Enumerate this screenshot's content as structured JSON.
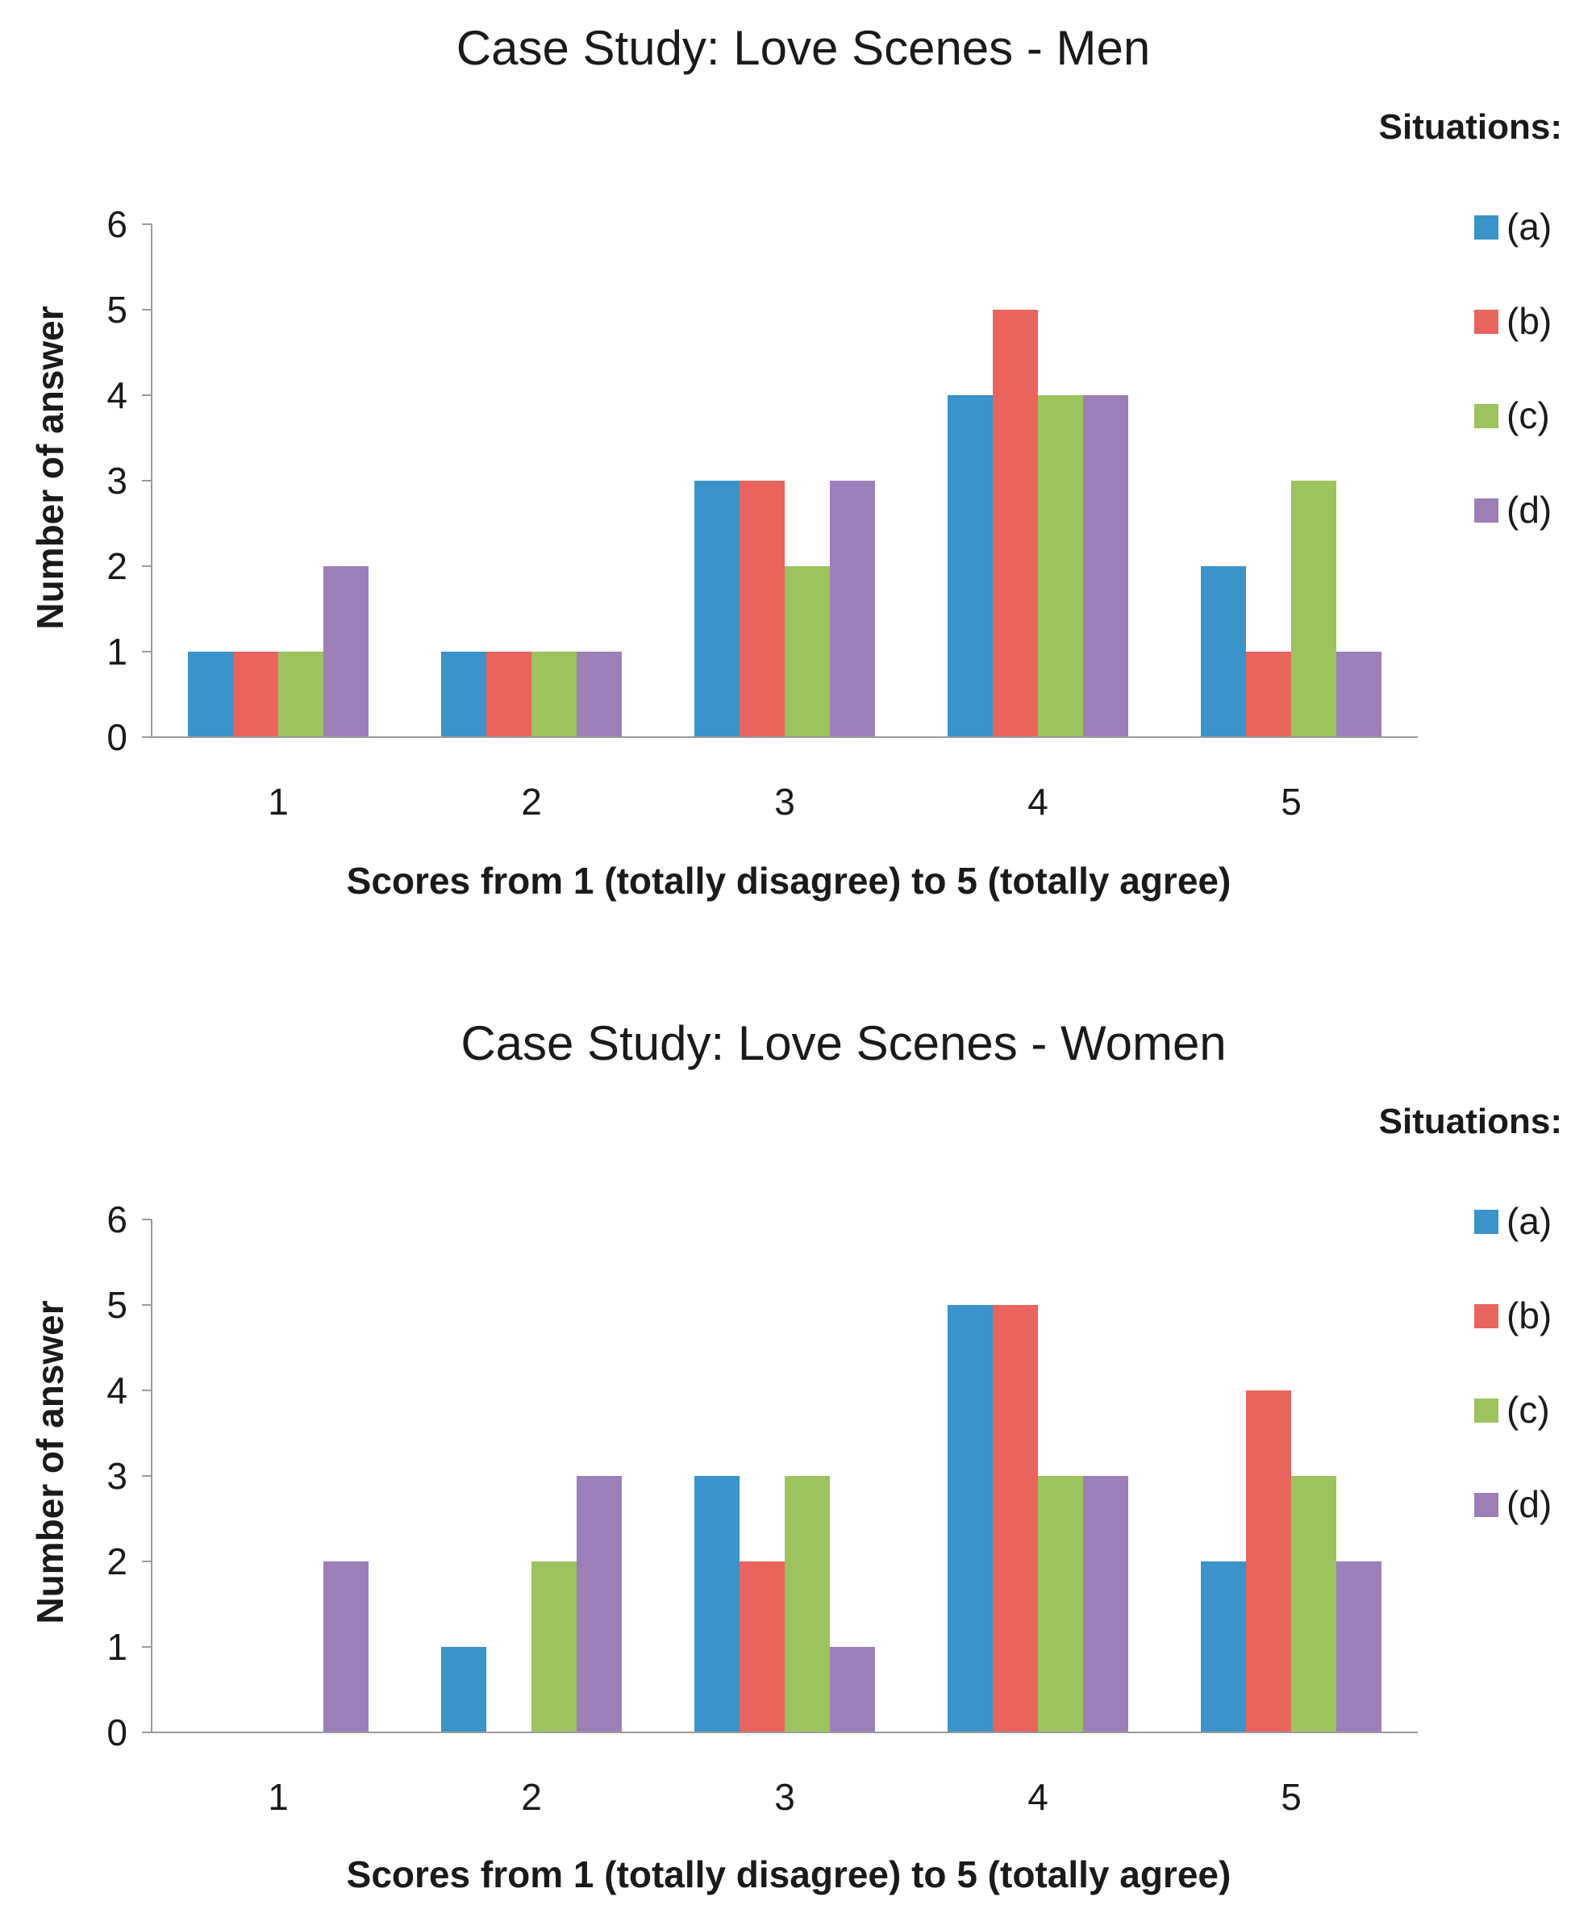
{
  "colors": {
    "(a)": "#3a93c9",
    "(b)": "#e8645d",
    "(c)": "#9cc35d",
    "(d)": "#9c7fb8",
    "axis": "#9a9a9a",
    "text": "#1a1a1a"
  },
  "chart_data": [
    {
      "type": "bar",
      "title": "Case Study: Love Scenes - Men",
      "xlabel": "Scores from 1 (totally disagree) to 5 (totally agree)",
      "ylabel": "Number of answer",
      "ylim": [
        0,
        6
      ],
      "yticks": [
        0,
        1,
        2,
        3,
        4,
        5,
        6
      ],
      "categories": [
        "1",
        "2",
        "3",
        "4",
        "5"
      ],
      "legend_title": "Situations:",
      "legend_position": "right",
      "grid": false,
      "series": [
        {
          "name": "(a)",
          "values": [
            1,
            1,
            3,
            4,
            2
          ]
        },
        {
          "name": "(b)",
          "values": [
            1,
            1,
            3,
            5,
            1
          ]
        },
        {
          "name": "(c)",
          "values": [
            1,
            1,
            2,
            4,
            3
          ]
        },
        {
          "name": "(d)",
          "values": [
            2,
            1,
            3,
            4,
            1
          ]
        }
      ]
    },
    {
      "type": "bar",
      "title": "Case Study: Love Scenes - Women",
      "xlabel": "Scores from 1 (totally disagree) to 5 (totally agree)",
      "ylabel": "Number of answer",
      "ylim": [
        0,
        6
      ],
      "yticks": [
        0,
        1,
        2,
        3,
        4,
        5,
        6
      ],
      "categories": [
        "1",
        "2",
        "3",
        "4",
        "5"
      ],
      "legend_title": "Situations:",
      "legend_position": "right",
      "grid": false,
      "series": [
        {
          "name": "(a)",
          "values": [
            0,
            1,
            3,
            5,
            2
          ]
        },
        {
          "name": "(b)",
          "values": [
            0,
            0,
            2,
            5,
            4
          ]
        },
        {
          "name": "(c)",
          "values": [
            0,
            2,
            3,
            3,
            3
          ]
        },
        {
          "name": "(d)",
          "values": [
            2,
            3,
            1,
            3,
            2
          ]
        }
      ]
    }
  ]
}
